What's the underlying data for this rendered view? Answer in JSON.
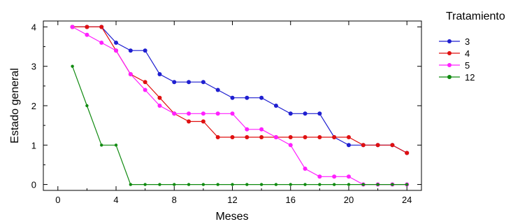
{
  "chart_data": {
    "type": "line",
    "title": "",
    "xlabel": "Meses",
    "ylabel": "Estado general",
    "xlim": [
      -1,
      25
    ],
    "ylim": [
      -0.15,
      4.15
    ],
    "xticks": [
      0,
      4,
      8,
      12,
      16,
      20,
      24
    ],
    "yticks": [
      0,
      1,
      2,
      3,
      4
    ],
    "legend": {
      "title": "Tratamiento",
      "placement": "right"
    },
    "grid": false,
    "series": [
      {
        "name": "3",
        "color": "#1f1fd0",
        "x": [
          1,
          2,
          3,
          4,
          5,
          6,
          7,
          8,
          9,
          10,
          11,
          12,
          13,
          14,
          15,
          16,
          17,
          18,
          19,
          20,
          21,
          22,
          23,
          24
        ],
        "y": [
          4,
          4,
          4,
          3.6,
          3.4,
          3.4,
          2.8,
          2.6,
          2.6,
          2.6,
          2.4,
          2.2,
          2.2,
          2.2,
          2.0,
          1.8,
          1.8,
          1.8,
          1.2,
          1.0,
          1.0,
          1.0,
          1.0,
          0.8
        ]
      },
      {
        "name": "4",
        "color": "#e01010",
        "x": [
          1,
          2,
          3,
          4,
          5,
          6,
          7,
          8,
          9,
          10,
          11,
          12,
          13,
          14,
          15,
          16,
          17,
          18,
          19,
          20,
          21,
          22,
          23,
          24
        ],
        "y": [
          4,
          4,
          4,
          3.4,
          2.8,
          2.6,
          2.2,
          1.8,
          1.6,
          1.6,
          1.2,
          1.2,
          1.2,
          1.2,
          1.2,
          1.2,
          1.2,
          1.2,
          1.2,
          1.2,
          1.0,
          1.0,
          1.0,
          0.8
        ]
      },
      {
        "name": "5",
        "color": "#ff20ff",
        "x": [
          1,
          2,
          3,
          4,
          5,
          6,
          7,
          8,
          9,
          10,
          11,
          12,
          13,
          14,
          15,
          16,
          17,
          18,
          19,
          20,
          21,
          22,
          23,
          24
        ],
        "y": [
          4,
          3.8,
          3.6,
          3.4,
          2.8,
          2.4,
          2.0,
          1.8,
          1.8,
          1.8,
          1.8,
          1.8,
          1.4,
          1.4,
          1.2,
          1.0,
          0.4,
          0.2,
          0.2,
          0.2,
          0,
          0,
          0,
          0
        ]
      },
      {
        "name": "12",
        "color": "#108a10",
        "x": [
          1,
          2,
          3,
          4,
          5,
          6,
          7,
          8,
          9,
          10,
          11,
          12,
          13,
          14,
          15,
          16,
          17,
          18,
          19,
          20,
          21,
          22,
          23,
          24
        ],
        "y": [
          3,
          2,
          1,
          1,
          0,
          0,
          0,
          0,
          0,
          0,
          0,
          0,
          0,
          0,
          0,
          0,
          0,
          0,
          0,
          0,
          0,
          0,
          0,
          0
        ]
      }
    ]
  }
}
